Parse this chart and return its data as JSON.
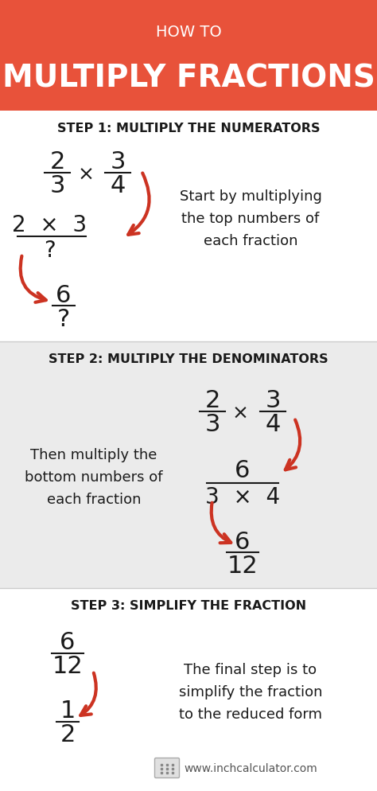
{
  "title_how_to": "HOW TO",
  "title_main": "MULTIPLY FRACTIONS",
  "header_color": "#e8523a",
  "header_text_color": "#ffffff",
  "bg_color_white": "#ffffff",
  "bg_color_grey": "#ebebeb",
  "text_color_dark": "#1a1a1a",
  "arrow_color": "#cc3322",
  "step1_header": "STEP 1: MULTIPLY THE NUMERATORS",
  "step2_header": "STEP 2: MULTIPLY THE DENOMINATORS",
  "step3_header": "STEP 3: SIMPLIFY THE FRACTION",
  "step1_desc": "Start by multiplying\nthe top numbers of\neach fraction",
  "step2_desc": "Then multiply the\nbottom numbers of\neach fraction",
  "step3_desc": "The final step is to\nsimplify the fraction\nto the reduced form",
  "footer_text": "www.inchcalculator.com"
}
